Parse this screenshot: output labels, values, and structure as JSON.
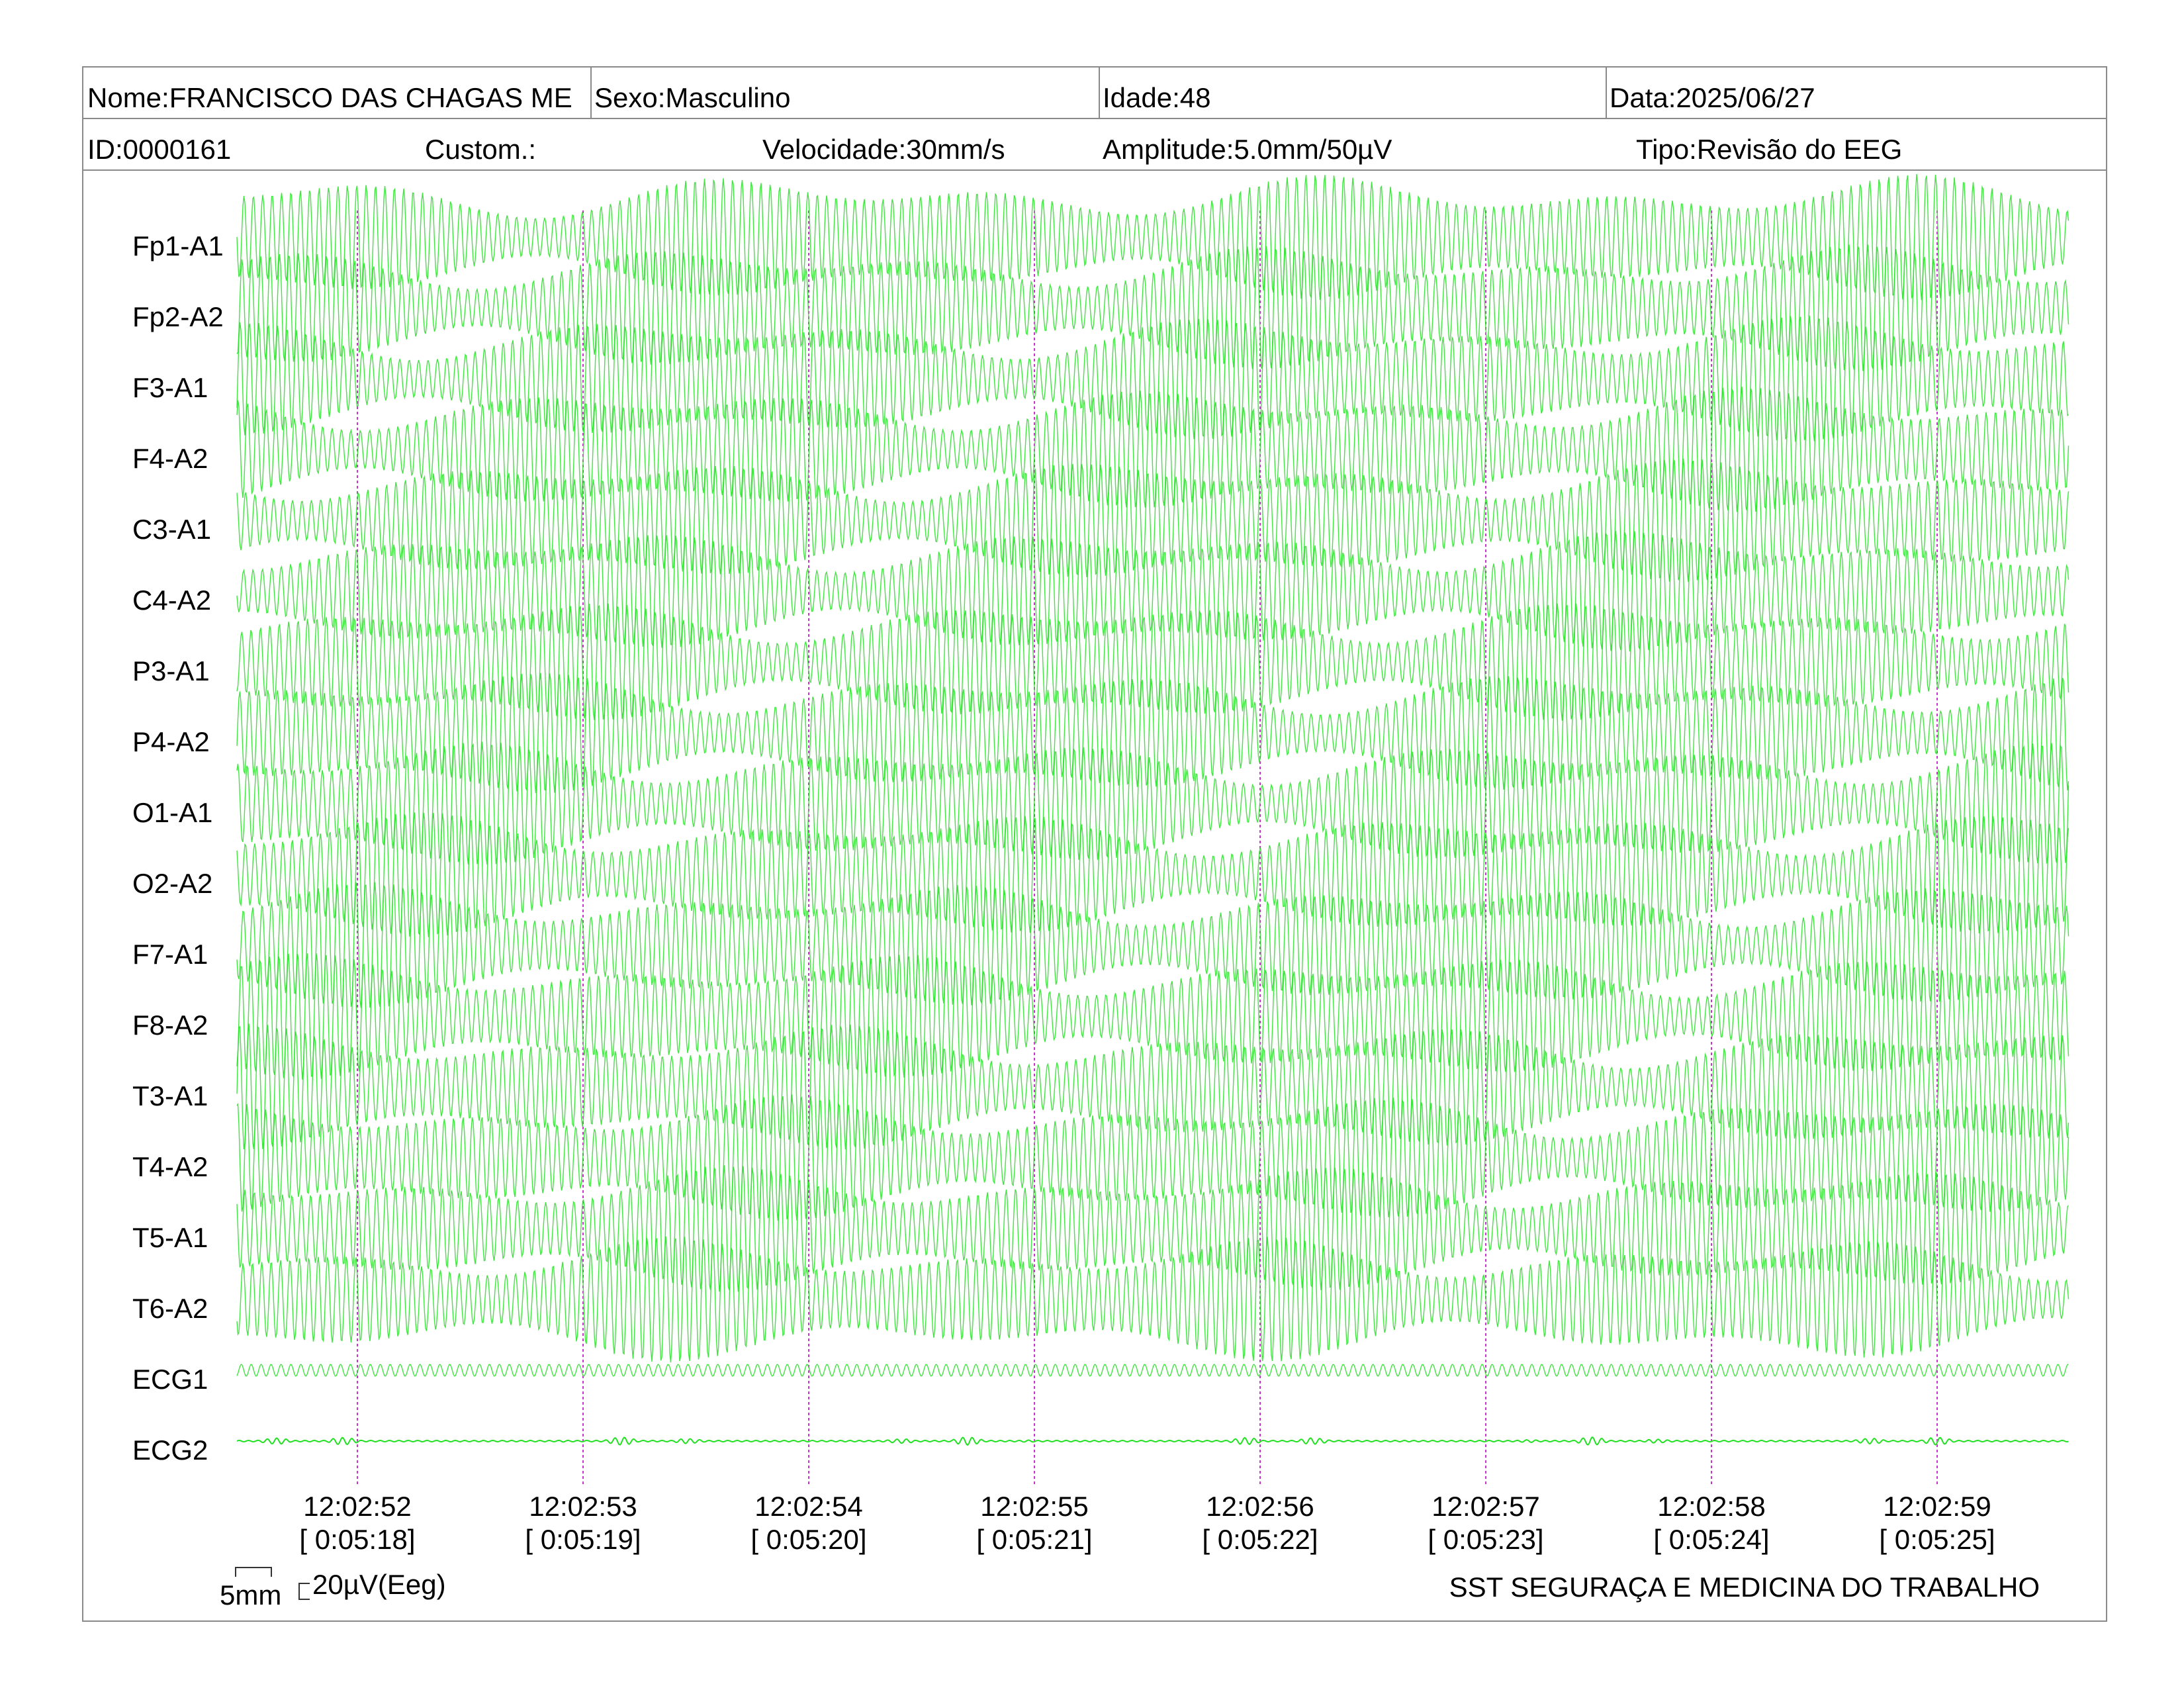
{
  "header": {
    "nome": "Nome:FRANCISCO DAS CHAGAS ME",
    "sexo": "Sexo:Masculino",
    "idade": "Idade:48",
    "data": "Data:2025/06/27",
    "id": "ID:0000161",
    "custom": "Custom.:",
    "velocidade": "Velocidade:30mm/s",
    "amplitude": "Amplitude:5.0mm/50µV",
    "tipo": "Tipo:Revisão do EEG"
  },
  "channels": [
    "Fp1-A1",
    "Fp2-A2",
    "F3-A1",
    "F4-A2",
    "C3-A1",
    "C4-A2",
    "P3-A1",
    "P4-A2",
    "O1-A1",
    "O2-A2",
    "F7-A1",
    "F8-A2",
    "T3-A1",
    "T4-A2",
    "T5-A1",
    "T6-A2",
    "ECG1",
    "ECG2"
  ],
  "time_marks": [
    {
      "clock": "12:02:52",
      "elapsed": "[ 0:05:18]"
    },
    {
      "clock": "12:02:53",
      "elapsed": "[ 0:05:19]"
    },
    {
      "clock": "12:02:54",
      "elapsed": "[ 0:05:20]"
    },
    {
      "clock": "12:02:55",
      "elapsed": "[ 0:05:21]"
    },
    {
      "clock": "12:02:56",
      "elapsed": "[ 0:05:22]"
    },
    {
      "clock": "12:02:57",
      "elapsed": "[ 0:05:23]"
    },
    {
      "clock": "12:02:58",
      "elapsed": "[ 0:05:24]"
    },
    {
      "clock": "12:02:59",
      "elapsed": "[ 0:05:25]"
    }
  ],
  "calibration": {
    "time_scale": "5mm",
    "amp_scale": "20µV(Eeg)"
  },
  "footer": {
    "company": "SST SEGURAÇA E MEDICINA DO TRABALHO"
  },
  "colors": {
    "trace": "#22e022",
    "marker": "#cc33cc",
    "border": "#8a8a8a"
  }
}
